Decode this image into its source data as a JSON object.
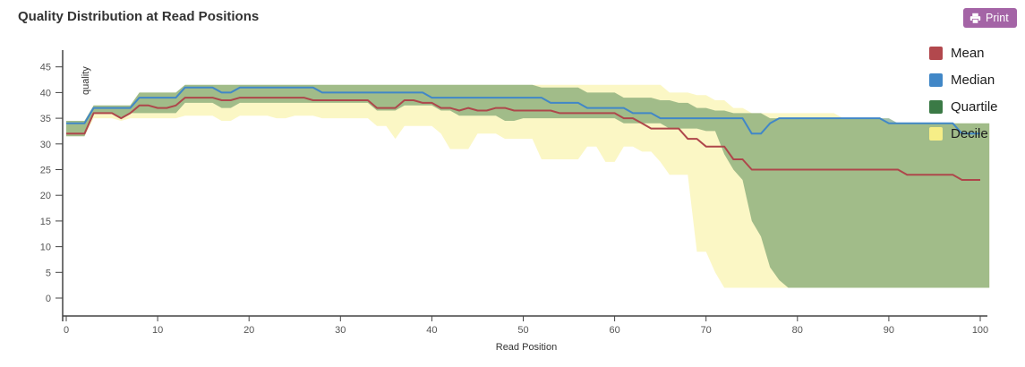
{
  "header": {
    "title": "Quality Distribution at Read Positions",
    "print_button": {
      "label": "Print",
      "color": "#a464a6",
      "icon": "printer-icon"
    }
  },
  "chart_data": {
    "type": "line+band",
    "title": "Quality Distribution at Read Positions",
    "xlabel": "Read Position",
    "ylabel": "quality",
    "x_min": 0,
    "x_max": 100,
    "x_step": 1,
    "xlim": [
      0,
      101
    ],
    "ylim": [
      0,
      46
    ],
    "x_ticks": [
      0,
      10,
      20,
      30,
      40,
      50,
      60,
      70,
      80,
      90,
      100
    ],
    "y_ticks": [
      0,
      5,
      10,
      15,
      20,
      25,
      30,
      35,
      40,
      45
    ],
    "grid": false,
    "legend_position": "top-right",
    "legend": [
      {
        "label": "Mean",
        "color": "#b2484d"
      },
      {
        "label": "Median",
        "color": "#4187c7"
      },
      {
        "label": "Quartile",
        "color": "#3b7a46"
      },
      {
        "label": "Decile",
        "color": "#f6ee87"
      }
    ],
    "bands": [
      {
        "name": "Decile",
        "fill": "#fbf7c5",
        "upper": [
          34.5,
          34.5,
          34.5,
          37.5,
          37.5,
          37.5,
          37.5,
          37.5,
          40,
          40,
          40,
          40,
          40,
          41.5,
          41.5,
          41.5,
          41.5,
          41.5,
          41.5,
          41.5,
          41.5,
          41.5,
          41.5,
          41.5,
          41.5,
          41.5,
          41.5,
          41.5,
          41.5,
          41.5,
          41.5,
          41.5,
          41.5,
          41.5,
          41.5,
          41.5,
          41.5,
          41.5,
          41.5,
          41.5,
          41.5,
          41.5,
          41.5,
          41.5,
          41.5,
          41.5,
          41.5,
          41.5,
          41.5,
          41.5,
          41.5,
          41.5,
          41.5,
          41.5,
          41.5,
          41.5,
          41.5,
          41.5,
          41.5,
          41.5,
          41.5,
          41.5,
          41.5,
          41.5,
          41.5,
          41.5,
          40,
          40,
          40,
          39.5,
          39.5,
          38.5,
          38.5,
          37,
          37,
          36,
          36,
          36,
          36,
          36,
          36,
          36,
          36,
          36,
          36,
          35,
          35,
          35,
          35,
          35,
          34,
          34,
          34,
          34,
          34,
          34,
          34,
          34,
          34,
          34,
          34,
          34
        ],
        "lower": [
          31.5,
          31.5,
          31.5,
          35,
          35,
          35,
          34.5,
          35,
          35,
          35,
          35,
          35,
          35,
          35.5,
          35.5,
          35.5,
          35.5,
          34.5,
          34.5,
          35.5,
          35.5,
          35.5,
          35.5,
          35,
          35,
          35.5,
          35.5,
          35.5,
          35,
          35,
          35,
          35,
          35,
          35,
          33.5,
          33.5,
          31,
          33.5,
          33.5,
          33.5,
          33.5,
          32,
          29,
          29,
          29,
          32,
          32,
          32,
          31,
          31,
          31,
          31,
          27,
          27,
          27,
          27,
          27,
          29.5,
          29.5,
          26.5,
          26.5,
          29.5,
          29.5,
          28.5,
          28.5,
          26.5,
          24,
          24,
          24,
          9,
          9,
          5,
          2,
          2,
          2,
          2,
          2,
          2,
          2,
          2,
          2,
          2,
          2,
          2,
          2,
          2,
          2,
          2,
          2,
          2,
          2,
          2,
          2,
          2,
          2,
          2,
          2,
          2,
          2,
          2,
          2,
          2
        ]
      },
      {
        "name": "Quartile",
        "fill": "rgba(59,122,70,0.47)",
        "upper": [
          34.5,
          34.5,
          34.5,
          37.5,
          37.5,
          37.5,
          37.5,
          37.5,
          40,
          40,
          40,
          40,
          40,
          41.5,
          41.5,
          41.5,
          41.5,
          41.5,
          41.5,
          41.5,
          41.5,
          41.5,
          41.5,
          41.5,
          41.5,
          41.5,
          41.5,
          41.5,
          41.5,
          41.5,
          41.5,
          41.5,
          41.5,
          41.5,
          41.5,
          41.5,
          41.5,
          41.5,
          41.5,
          41.5,
          41.5,
          41.5,
          41.5,
          41.5,
          41.5,
          41.5,
          41.5,
          41.5,
          41.5,
          41.5,
          41.5,
          41.5,
          41,
          41,
          41,
          41,
          41,
          40,
          40,
          40,
          40,
          39,
          39,
          39,
          39,
          38.5,
          38.5,
          38,
          38,
          37,
          37,
          36.5,
          36.5,
          36,
          36,
          36,
          36,
          35,
          35,
          35,
          35,
          35,
          35,
          35,
          35,
          35,
          35,
          35,
          35,
          35,
          35,
          34,
          34,
          34,
          34,
          34,
          34,
          34,
          34,
          34,
          34,
          34
        ],
        "lower": [
          31.5,
          31.5,
          31.5,
          36,
          36,
          36,
          35,
          36,
          36,
          36,
          36,
          36,
          36,
          38,
          38,
          38,
          38,
          37,
          37,
          38,
          38,
          38,
          38,
          38,
          38,
          38,
          38,
          38,
          38,
          38,
          38,
          38,
          38,
          38,
          36.5,
          36.5,
          36.5,
          37.5,
          37.5,
          37.5,
          37.5,
          36.5,
          36.5,
          35.5,
          35.5,
          35.5,
          35.5,
          35.5,
          34.5,
          34.5,
          35,
          35,
          35,
          35,
          35,
          35,
          35,
          35,
          35,
          35,
          35,
          34,
          34,
          34,
          34,
          34,
          33,
          33,
          33,
          33,
          32.5,
          32.5,
          28,
          25,
          23,
          15,
          12,
          6,
          3.5,
          2,
          2,
          2,
          2,
          2,
          2,
          2,
          2,
          2,
          2,
          2,
          2,
          2,
          2,
          2,
          2,
          2,
          2,
          2,
          2,
          2,
          2,
          2
        ]
      }
    ],
    "lines": [
      {
        "name": "Median",
        "color": "#4187c7",
        "values": [
          34,
          34,
          34,
          37,
          37,
          37,
          37,
          37,
          39,
          39,
          39,
          39,
          39,
          41,
          41,
          41,
          41,
          40,
          40,
          41,
          41,
          41,
          41,
          41,
          41,
          41,
          41,
          41,
          40,
          40,
          40,
          40,
          40,
          40,
          40,
          40,
          40,
          40,
          40,
          40,
          39,
          39,
          39,
          39,
          39,
          39,
          39,
          39,
          39,
          39,
          39,
          39,
          39,
          38,
          38,
          38,
          38,
          37,
          37,
          37,
          37,
          37,
          36,
          36,
          36,
          35,
          35,
          35,
          35,
          35,
          35,
          35,
          35,
          35,
          35,
          32,
          32,
          34,
          35,
          35,
          35,
          35,
          35,
          35,
          35,
          35,
          35,
          35,
          35,
          35,
          34,
          34,
          34,
          34,
          34,
          34,
          34,
          34,
          32,
          32,
          32
        ]
      },
      {
        "name": "Mean",
        "color": "#ae474b",
        "values": [
          32,
          32,
          32,
          36,
          36,
          36,
          35,
          36,
          37.5,
          37.5,
          37,
          37,
          37.5,
          39,
          39,
          39,
          39,
          38.5,
          38.5,
          39,
          39,
          39,
          39,
          39,
          39,
          39,
          39,
          38.5,
          38.5,
          38.5,
          38.5,
          38.5,
          38.5,
          38.5,
          37,
          37,
          37,
          38.5,
          38.5,
          38,
          38,
          37,
          37,
          36.5,
          37,
          36.5,
          36.5,
          37,
          37,
          36.5,
          36.5,
          36.5,
          36.5,
          36.5,
          36,
          36,
          36,
          36,
          36,
          36,
          36,
          35,
          35,
          34,
          33,
          33,
          33,
          33,
          31,
          31,
          29.5,
          29.5,
          29.5,
          27,
          27,
          25,
          25,
          25,
          25,
          25,
          25,
          25,
          25,
          25,
          25,
          25,
          25,
          25,
          25,
          25,
          25,
          25,
          24,
          24,
          24,
          24,
          24,
          24,
          23,
          23,
          23
        ]
      }
    ]
  }
}
